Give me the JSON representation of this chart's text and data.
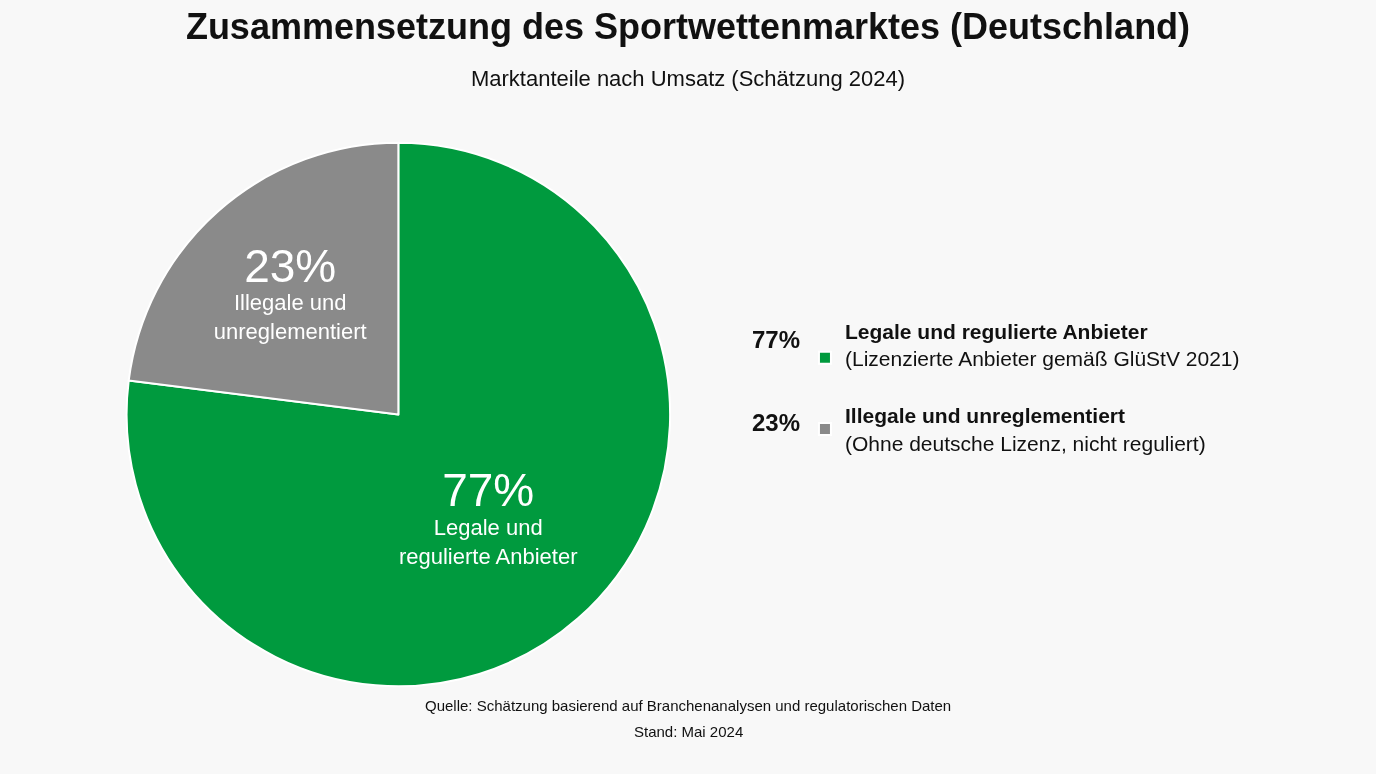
{
  "chart_data": {
    "type": "pie",
    "title": "Zusammensetzung des Sportwettenmarktes (Deutschland)",
    "subtitle": "Marktanteile nach Umsatz (Schätzung 2024)",
    "categories": [
      "Legale und regulierte Anbieter",
      "Illegale und unreglementiert"
    ],
    "values": [
      77,
      23
    ],
    "value_labels": [
      "77%",
      "23%"
    ],
    "colors": [
      "#009a3e",
      "#8a8a8a"
    ],
    "legend": "right",
    "annotations": [
      "(Lizenzierte Anbieter gemäß GlüStV 2021)",
      "(Ohne deutsche Lizenz, nicht reguliert)",
      "Quelle: Schätzung basierend auf Branchenanalysen und regulatorischen Daten",
      "Stand: Mai 2024"
    ]
  }
}
